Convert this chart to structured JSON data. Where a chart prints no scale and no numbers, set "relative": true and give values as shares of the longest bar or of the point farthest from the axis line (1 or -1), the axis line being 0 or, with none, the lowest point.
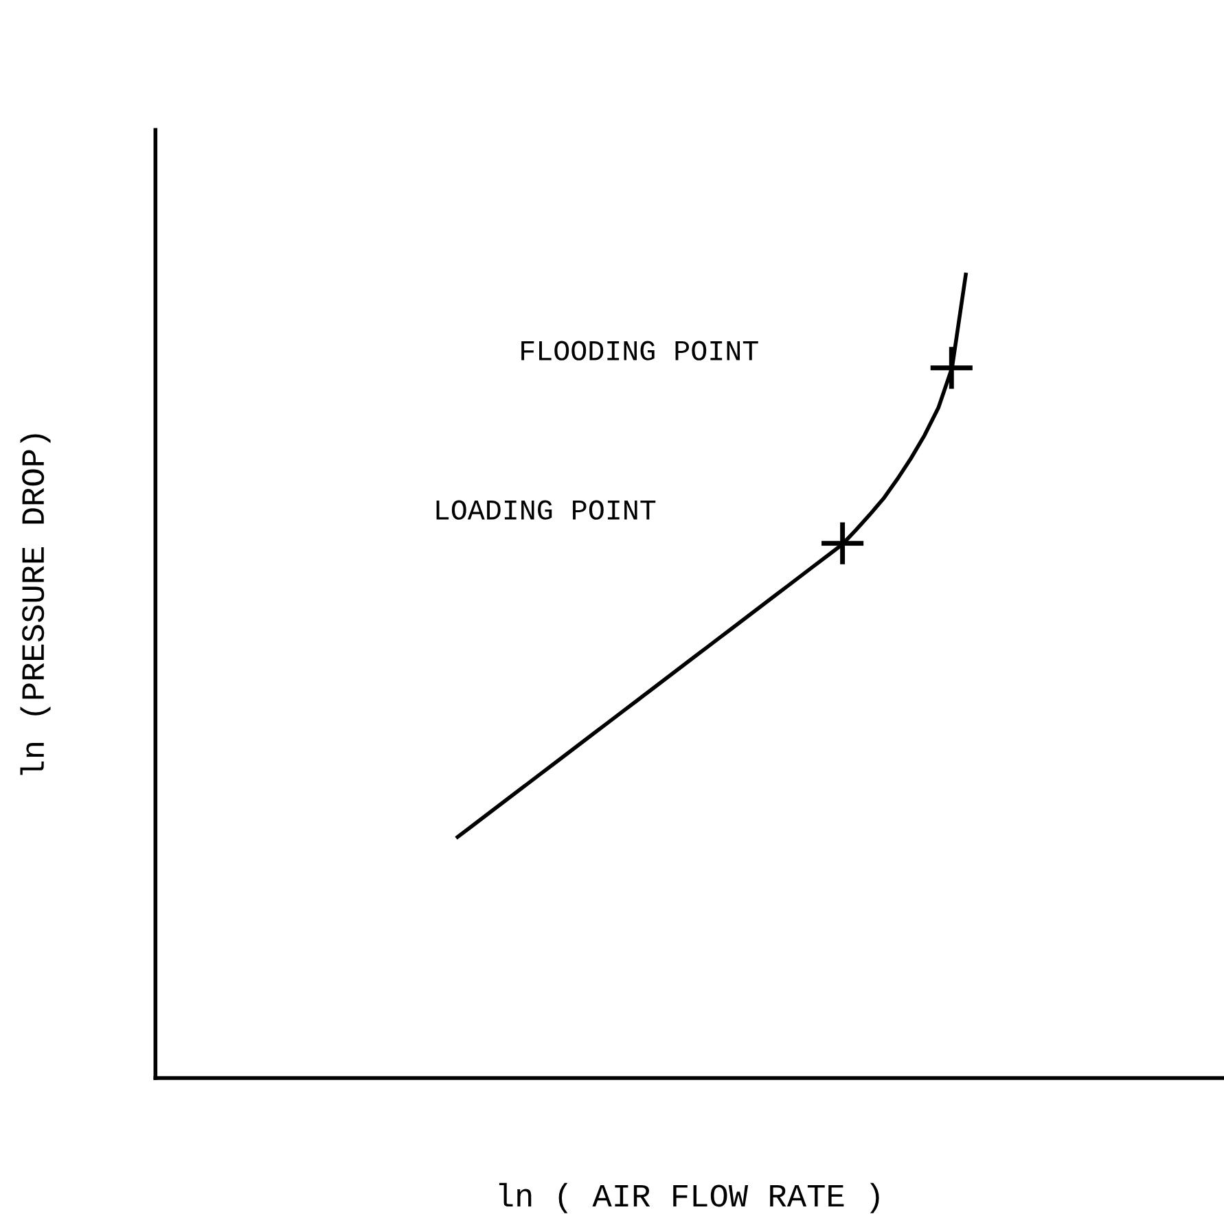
{
  "chart_data": {
    "type": "line",
    "relative": true,
    "xlabel": "ln ( AIR FLOW RATE )",
    "ylabel": "ln (PRESSURE DROP)",
    "categories": [
      null,
      null,
      null,
      null,
      null,
      null,
      null,
      null,
      null,
      null,
      null,
      null,
      null,
      null,
      null,
      null,
      null,
      null,
      null,
      null,
      null,
      null,
      null,
      null,
      null,
      null,
      null,
      null,
      null,
      null,
      null,
      null,
      null,
      null,
      null,
      null,
      null,
      null,
      null,
      null,
      null,
      null,
      null,
      null,
      null,
      null,
      null,
      null,
      null,
      null,
      null,
      null,
      null,
      null,
      null,
      null,
      null,
      null,
      null,
      null,
      null,
      null,
      null,
      null,
      null,
      null,
      null,
      null,
      null,
      null,
      null,
      null,
      null,
      null,
      null,
      null,
      null,
      null
    ],
    "series": [
      {
        "color": "#000000",
        "values": [
          null,
          null,
          null,
          null,
          null,
          null,
          null,
          null,
          null,
          null,
          null,
          null,
          null,
          null,
          null,
          null,
          null,
          null,
          null,
          null,
          null,
          null,
          0.3,
          0.313,
          0.326,
          0.339,
          0.352,
          0.365,
          0.378,
          0.391,
          0.404,
          0.417,
          0.43,
          0.443,
          0.456,
          0.469,
          0.482,
          0.495,
          0.508,
          0.521,
          0.534,
          0.547,
          0.56,
          0.573,
          0.586,
          0.599,
          0.612,
          0.625,
          0.638,
          0.651,
          0.664,
          0.682,
          0.701,
          0.721,
          0.745,
          0.771,
          0.8,
          0.834,
          0.884,
          1.0,
          null,
          null,
          null,
          null,
          null,
          null,
          null,
          null,
          null,
          null,
          null,
          null,
          null,
          null,
          null,
          null,
          null,
          null
        ]
      }
    ],
    "annotations": [
      "FLOODING POINT",
      "LOADING POINT"
    ],
    "legend": false
  }
}
